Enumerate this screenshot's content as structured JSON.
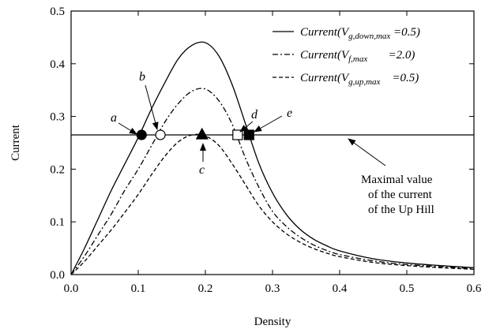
{
  "chart_data": {
    "type": "line",
    "xlabel": "Density",
    "ylabel": "Current",
    "xlim": [
      0.0,
      0.6
    ],
    "ylim": [
      0.0,
      0.5
    ],
    "xticks": [
      "0.0",
      "0.1",
      "0.2",
      "0.3",
      "0.4",
      "0.5",
      "0.6"
    ],
    "yticks": [
      "0.0",
      "0.1",
      "0.2",
      "0.3",
      "0.4",
      "0.5"
    ],
    "grid": false,
    "legend_position": "top-right",
    "series": [
      {
        "style": "solid",
        "legend": {
          "pre": "Current(V",
          "sub": "g,down,max",
          "post": " =0.5)"
        },
        "x": [
          0,
          0.02,
          0.04,
          0.06,
          0.08,
          0.1,
          0.12,
          0.14,
          0.16,
          0.18,
          0.2,
          0.22,
          0.24,
          0.26,
          0.28,
          0.3,
          0.32,
          0.34,
          0.36,
          0.38,
          0.4,
          0.45,
          0.5,
          0.55,
          0.6
        ],
        "y": [
          0,
          0.05,
          0.105,
          0.16,
          0.21,
          0.26,
          0.315,
          0.365,
          0.41,
          0.435,
          0.44,
          0.415,
          0.36,
          0.285,
          0.21,
          0.155,
          0.115,
          0.087,
          0.068,
          0.055,
          0.045,
          0.03,
          0.022,
          0.017,
          0.013
        ]
      },
      {
        "style": "dash-dot",
        "legend": {
          "pre": "Current(V",
          "sub": "f,max",
          "post": "       =2.0)"
        },
        "x": [
          0,
          0.02,
          0.04,
          0.06,
          0.08,
          0.1,
          0.12,
          0.14,
          0.16,
          0.18,
          0.2,
          0.22,
          0.24,
          0.26,
          0.28,
          0.3,
          0.32,
          0.34,
          0.36,
          0.38,
          0.4,
          0.45,
          0.5,
          0.55,
          0.6
        ],
        "y": [
          0,
          0.035,
          0.075,
          0.115,
          0.16,
          0.2,
          0.245,
          0.29,
          0.325,
          0.348,
          0.352,
          0.33,
          0.285,
          0.22,
          0.165,
          0.12,
          0.092,
          0.072,
          0.057,
          0.046,
          0.038,
          0.026,
          0.019,
          0.015,
          0.011
        ]
      },
      {
        "style": "dashed",
        "legend": {
          "pre": "Current(V",
          "sub": "g,up,max",
          "post": "    =0.5)"
        },
        "x": [
          0,
          0.02,
          0.04,
          0.06,
          0.08,
          0.1,
          0.12,
          0.14,
          0.16,
          0.18,
          0.2,
          0.22,
          0.24,
          0.26,
          0.28,
          0.3,
          0.32,
          0.34,
          0.36,
          0.38,
          0.4,
          0.45,
          0.5,
          0.55,
          0.6
        ],
        "y": [
          0,
          0.025,
          0.055,
          0.085,
          0.118,
          0.152,
          0.19,
          0.225,
          0.252,
          0.265,
          0.263,
          0.245,
          0.21,
          0.17,
          0.13,
          0.1,
          0.078,
          0.062,
          0.05,
          0.041,
          0.034,
          0.023,
          0.017,
          0.013,
          0.01
        ]
      }
    ],
    "reference_line": {
      "y": 0.265,
      "style": "solid"
    },
    "markers": [
      {
        "label": "a",
        "x": 0.105,
        "y": 0.265,
        "shape": "circle",
        "fill": "filled"
      },
      {
        "label": "b",
        "x": 0.133,
        "y": 0.265,
        "shape": "circle",
        "fill": "open"
      },
      {
        "label": "c",
        "x": 0.195,
        "y": 0.265,
        "shape": "triangle",
        "fill": "filled"
      },
      {
        "label": "d",
        "x": 0.248,
        "y": 0.265,
        "shape": "square",
        "fill": "open"
      },
      {
        "label": "e",
        "x": 0.265,
        "y": 0.265,
        "shape": "square",
        "fill": "filled"
      }
    ],
    "annotation": {
      "lines": [
        "Maximal value",
        "of the current",
        "of the Up Hill"
      ]
    }
  }
}
